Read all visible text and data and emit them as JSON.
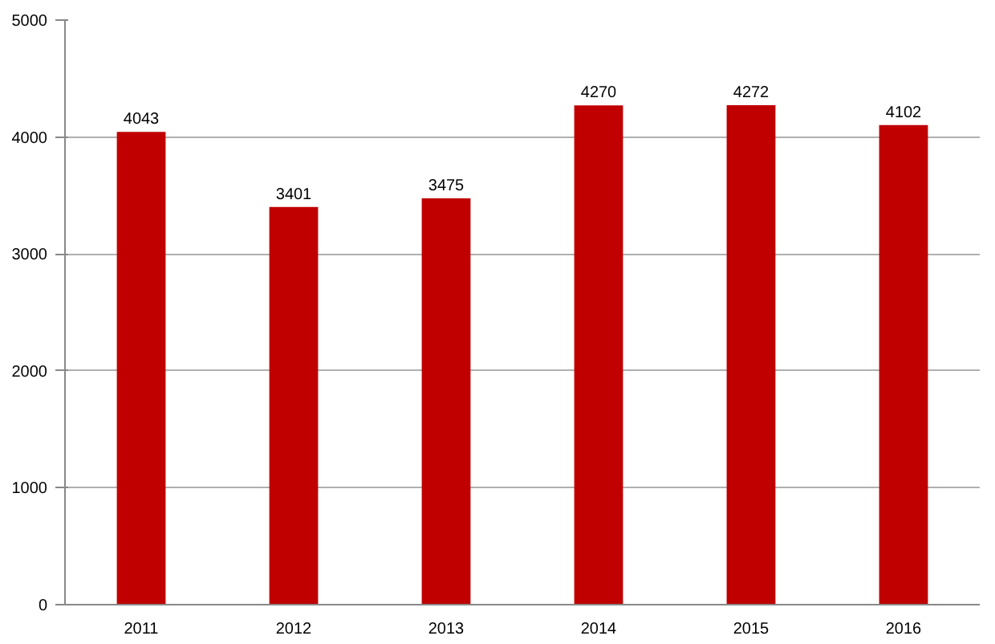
{
  "chart_data": {
    "type": "bar",
    "categories": [
      "2011",
      "2012",
      "2013",
      "2014",
      "2015",
      "2016"
    ],
    "values": [
      4043,
      3401,
      3475,
      4270,
      4272,
      4102
    ],
    "color": "#c00000",
    "ylim": [
      0,
      5000
    ],
    "yticks": [
      0,
      1000,
      2000,
      3000,
      4000,
      5000
    ],
    "grid": "y",
    "data_labels": true
  }
}
